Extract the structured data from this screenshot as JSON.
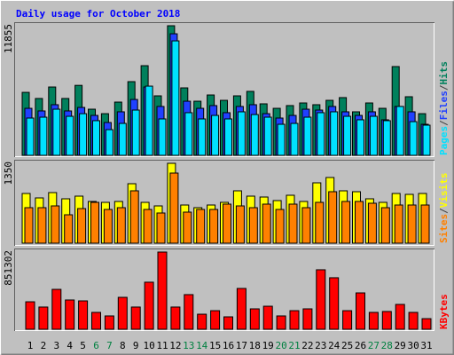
{
  "chart_data": [
    {
      "type": "bar",
      "title": "Daily usage for October 2018",
      "legend_separator": "/",
      "ylim": [
        0,
        11855
      ],
      "yticks": [
        11855
      ],
      "grid": false,
      "series": [
        {
          "name": "Hits",
          "color": "#00805c",
          "values": [
            5760,
            5200,
            6250,
            5200,
            6400,
            4220,
            3810,
            4870,
            6740,
            8200,
            5440,
            11855,
            6170,
            4950,
            5520,
            5030,
            5440,
            5850,
            4710,
            4300,
            4550,
            4790,
            4630,
            5030,
            5280,
            3980,
            4790,
            4300,
            8120,
            5360,
            3810
          ]
        },
        {
          "name": "Files",
          "color": "#2040ff",
          "values": [
            4300,
            4060,
            4630,
            4060,
            4380,
            3650,
            3000,
            3980,
            5110,
            6250,
            4470,
            11120,
            4950,
            4300,
            4550,
            3900,
            4470,
            4630,
            3810,
            3410,
            3650,
            4220,
            4140,
            4470,
            3980,
            3650,
            3980,
            3250,
            4470,
            3980,
            2840
          ]
        },
        {
          "name": "Pages",
          "color": "#00e0ff",
          "values": [
            3410,
            3490,
            4220,
            3570,
            3810,
            3170,
            2350,
            2920,
            4140,
            6330,
            3330,
            10470,
            3900,
            3330,
            3650,
            3330,
            3980,
            3730,
            3490,
            2840,
            2920,
            3490,
            3900,
            3980,
            3570,
            3250,
            3570,
            3170,
            4470,
            3080,
            2760
          ]
        }
      ]
    },
    {
      "type": "bar",
      "ylim": [
        0,
        1350
      ],
      "yticks": [
        1350
      ],
      "grid": false,
      "series": [
        {
          "name": "Visits",
          "color": "#ffff00",
          "values": [
            840,
            765,
            855,
            750,
            795,
            705,
            690,
            705,
            1005,
            690,
            630,
            1350,
            645,
            600,
            645,
            690,
            885,
            795,
            780,
            720,
            810,
            705,
            1020,
            1110,
            885,
            870,
            750,
            690,
            840,
            825,
            840
          ]
        },
        {
          "name": "Sites",
          "color": "#ff8000",
          "values": [
            600,
            600,
            630,
            480,
            585,
            690,
            570,
            600,
            885,
            570,
            510,
            1185,
            525,
            570,
            570,
            660,
            630,
            600,
            660,
            570,
            660,
            600,
            690,
            870,
            705,
            705,
            675,
            600,
            645,
            645,
            645
          ]
        }
      ]
    },
    {
      "type": "bar",
      "ylim": [
        0,
        851302
      ],
      "yticks": [
        851302
      ],
      "grid": false,
      "categories": [
        "1",
        "2",
        "3",
        "4",
        "5",
        "6",
        "7",
        "8",
        "9",
        "10",
        "11",
        "12",
        "13",
        "14",
        "15",
        "16",
        "17",
        "18",
        "19",
        "20",
        "21",
        "22",
        "23",
        "24",
        "25",
        "26",
        "27",
        "28",
        "29",
        "30",
        "31"
      ],
      "category_colors": [
        "#000000",
        "#000000",
        "#000000",
        "#000000",
        "#000000",
        "#008040",
        "#008040",
        "#000000",
        "#000000",
        "#000000",
        "#000000",
        "#000000",
        "#008040",
        "#008040",
        "#000000",
        "#000000",
        "#000000",
        "#000000",
        "#000000",
        "#008040",
        "#008040",
        "#000000",
        "#000000",
        "#000000",
        "#000000",
        "#000000",
        "#008040",
        "#008040",
        "#000000",
        "#000000",
        "#000000"
      ],
      "series": [
        {
          "name": "KBytes",
          "color": "#ff0000",
          "values": [
            303000,
            245000,
            440000,
            323000,
            313000,
            186000,
            147000,
            352000,
            245000,
            519000,
            851302,
            245000,
            382000,
            166000,
            205000,
            137000,
            450000,
            225000,
            254000,
            147000,
            205000,
            225000,
            656000,
            568000,
            205000,
            401000,
            186000,
            196000,
            274000,
            186000,
            117000
          ]
        }
      ]
    }
  ]
}
